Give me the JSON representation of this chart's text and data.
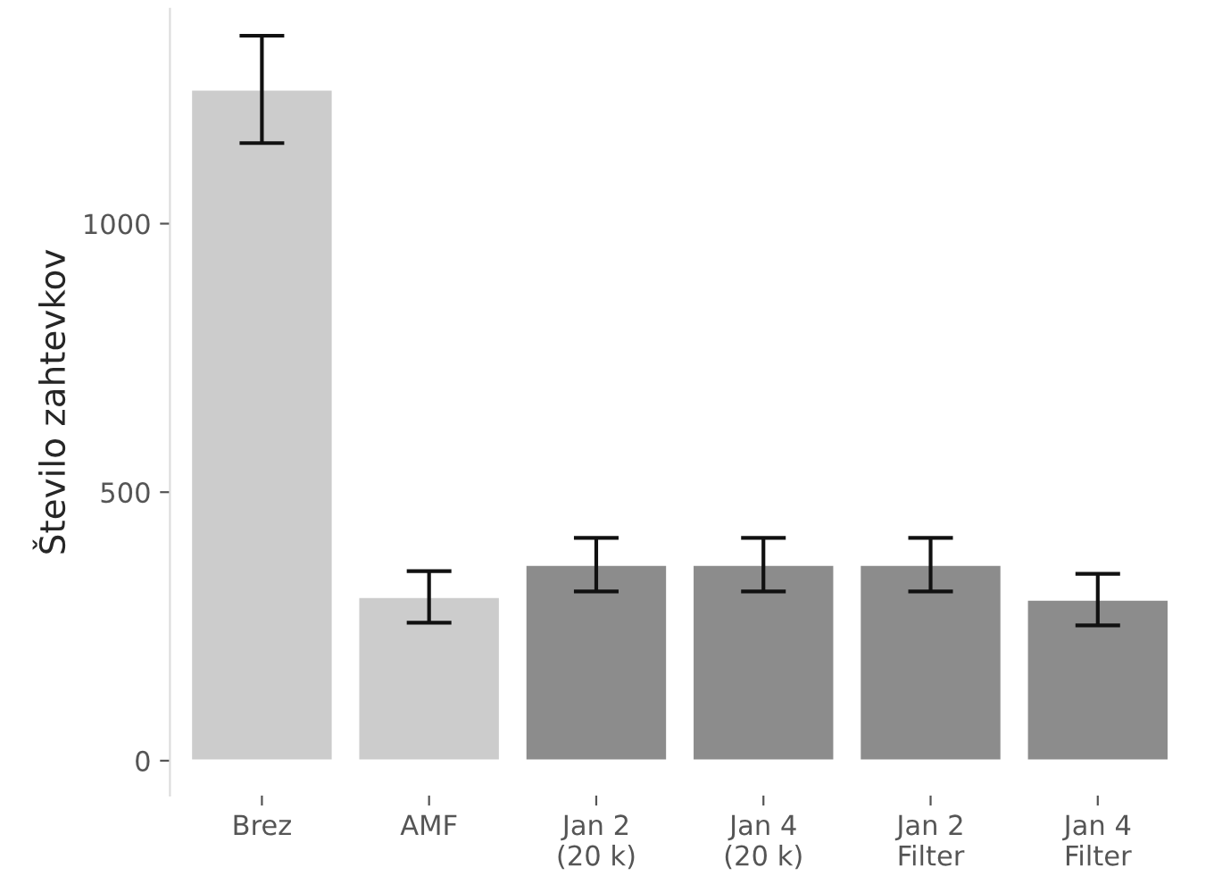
{
  "chart_data": {
    "type": "bar",
    "ylabel": "Število zahtevkov",
    "categories": [
      "Brez",
      "AMF",
      "Jan 2\n(20 k)",
      "Jan 4\n(20 k)",
      "Jan 2\nFilter",
      "Jan 4\nFilter"
    ],
    "values": [
      1250,
      305,
      365,
      365,
      365,
      300
    ],
    "errors": [
      100,
      48,
      50,
      50,
      50,
      48
    ],
    "colors": [
      "#cccccc",
      "#cccccc",
      "#8c8c8c",
      "#8c8c8c",
      "#8c8c8c",
      "#8c8c8c"
    ],
    "ylim": [
      -65,
      1400
    ],
    "yticks": [
      0,
      500,
      1000
    ],
    "grid": false,
    "legend": false
  }
}
